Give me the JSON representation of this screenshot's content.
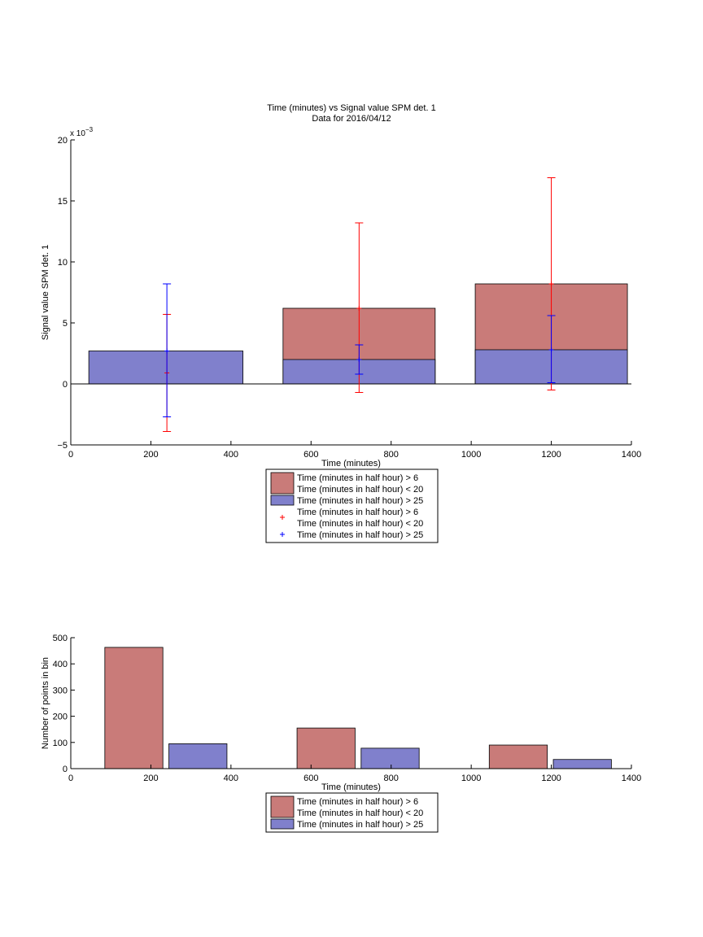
{
  "colors": {
    "red_fill": "#c97b79",
    "blue_fill": "#8080cc",
    "red_marker": "#ff0000",
    "blue_marker": "#0000ff",
    "axis": "#000000"
  },
  "chart_data": [
    {
      "type": "bar",
      "title": "Time (minutes) vs Signal value SPM det. 1",
      "subtitle": "Data for 2016/04/12",
      "xlabel": "Time (minutes)",
      "ylabel": "Signal value SPM det. 1",
      "yexponent_label": "x 10",
      "yexponent_power": "−3",
      "xlim": [
        0,
        1400
      ],
      "ylim": [
        -5,
        20
      ],
      "xticks": [
        "0",
        "200",
        "400",
        "600",
        "800",
        "1000",
        "1200",
        "1400"
      ],
      "yticks": [
        "−5",
        "0",
        "5",
        "10",
        "15",
        "20"
      ],
      "grid": false,
      "legend_position": "below",
      "bars": [
        {
          "series": "red",
          "x_start": 530,
          "x_end": 910,
          "y0": 0,
          "y1": 6.2
        },
        {
          "series": "red",
          "x_start": 1010,
          "x_end": 1390,
          "y0": 0,
          "y1": 8.2
        },
        {
          "series": "blue",
          "x_start": 45,
          "x_end": 430,
          "y0": 0,
          "y1": 2.7
        },
        {
          "series": "blue",
          "x_start": 530,
          "x_end": 910,
          "y0": 0,
          "y1": 2.0
        },
        {
          "series": "blue",
          "x_start": 1010,
          "x_end": 1390,
          "y0": 0,
          "y1": 2.8
        }
      ],
      "errorbars": [
        {
          "series": "red",
          "x": 240,
          "y": 0.9,
          "low": -3.9,
          "high": 5.7
        },
        {
          "series": "blue",
          "x": 240,
          "y": 2.7,
          "low": -2.7,
          "high": 8.2
        },
        {
          "series": "red",
          "x": 720,
          "y": 6.2,
          "low": -0.7,
          "high": 13.2
        },
        {
          "series": "blue",
          "x": 720,
          "y": 2.0,
          "low": 0.8,
          "high": 3.2
        },
        {
          "series": "red",
          "x": 1200,
          "y": 8.2,
          "low": -0.5,
          "high": 16.9
        },
        {
          "series": "blue",
          "x": 1200,
          "y": 2.8,
          "low": 0.1,
          "high": 5.6
        }
      ],
      "legend": [
        {
          "kind": "patch",
          "color": "red",
          "lines": [
            "Time (minutes in half hour) > 6",
            "Time (minutes in half hour) < 20"
          ]
        },
        {
          "kind": "patch",
          "color": "blue",
          "lines": [
            "Time (minutes in half hour) > 25"
          ]
        },
        {
          "kind": "marker",
          "color": "red",
          "lines": [
            "Time (minutes in half hour) > 6",
            "Time (minutes in half hour) < 20"
          ]
        },
        {
          "kind": "marker",
          "color": "blue",
          "lines": [
            "Time (minutes in half hour) > 25"
          ]
        }
      ]
    },
    {
      "type": "bar",
      "title": "",
      "xlabel": "Time (minutes)",
      "ylabel": "Number of points in bin",
      "xlim": [
        0,
        1400
      ],
      "ylim": [
        0,
        500
      ],
      "xticks": [
        "0",
        "200",
        "400",
        "600",
        "800",
        "1000",
        "1200",
        "1400"
      ],
      "yticks": [
        "0",
        "100",
        "200",
        "300",
        "400",
        "500"
      ],
      "grid": false,
      "legend_position": "below",
      "bars": [
        {
          "series": "red",
          "x_start": 85,
          "x_end": 230,
          "y0": 0,
          "y1": 463
        },
        {
          "series": "blue",
          "x_start": 245,
          "x_end": 390,
          "y0": 0,
          "y1": 95
        },
        {
          "series": "red",
          "x_start": 565,
          "x_end": 710,
          "y0": 0,
          "y1": 155
        },
        {
          "series": "blue",
          "x_start": 725,
          "x_end": 870,
          "y0": 0,
          "y1": 78
        },
        {
          "series": "red",
          "x_start": 1045,
          "x_end": 1190,
          "y0": 0,
          "y1": 90
        },
        {
          "series": "blue",
          "x_start": 1205,
          "x_end": 1350,
          "y0": 0,
          "y1": 35
        }
      ],
      "legend": [
        {
          "kind": "patch",
          "color": "red",
          "lines": [
            "Time (minutes in half hour) > 6",
            "Time (minutes in half hour) < 20"
          ]
        },
        {
          "kind": "patch",
          "color": "blue",
          "lines": [
            "Time (minutes in half hour) > 25"
          ]
        }
      ]
    }
  ]
}
